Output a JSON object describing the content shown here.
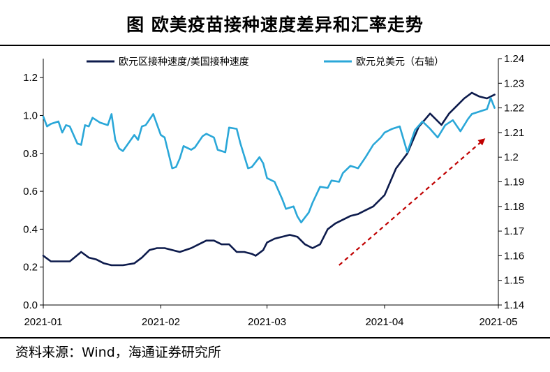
{
  "title": "图 欧美疫苗接种速度差异和汇率走势",
  "source": "资料来源：Wind，海通证券研究所",
  "chart_data": {
    "type": "line",
    "legend": {
      "placement": "top",
      "entries": [
        "欧元区接种速度/美国接种速度",
        "欧元兑美元（右轴）"
      ]
    },
    "x_ticks": [
      "2021-01",
      "2021-02",
      "2021-03",
      "2021-04",
      "2021-05"
    ],
    "x_tick_dates": [
      "2021-01-01",
      "2021-02-01",
      "2021-03-01",
      "2021-04-01",
      "2021-05-01"
    ],
    "y_left": {
      "ticks": [
        "0.0",
        "0.2",
        "0.4",
        "0.6",
        "0.8",
        "1.0",
        "1.2"
      ],
      "range": [
        0,
        1.3
      ]
    },
    "y_right": {
      "ticks": [
        "1.14",
        "1.15",
        "1.16",
        "1.17",
        "1.18",
        "1.19",
        "1.2",
        "1.21",
        "1.22",
        "1.23",
        "1.24"
      ],
      "range": [
        1.14,
        1.24
      ]
    },
    "colors": {
      "ratio": "#0d1b4c",
      "eurusd": "#2aa7d8",
      "arrow": "#c00000"
    },
    "series": [
      {
        "name": "欧元区接种速度/美国接种速度",
        "axis": "left",
        "x": [
          "2021-01-01",
          "2021-01-03",
          "2021-01-05",
          "2021-01-08",
          "2021-01-11",
          "2021-01-13",
          "2021-01-15",
          "2021-01-17",
          "2021-01-19",
          "2021-01-22",
          "2021-01-25",
          "2021-01-27",
          "2021-01-29",
          "2021-01-31",
          "2021-02-02",
          "2021-02-04",
          "2021-02-06",
          "2021-02-09",
          "2021-02-11",
          "2021-02-13",
          "2021-02-15",
          "2021-02-17",
          "2021-02-19",
          "2021-02-21",
          "2021-02-23",
          "2021-02-25",
          "2021-02-26",
          "2021-02-28",
          "2021-03-01",
          "2021-03-03",
          "2021-03-05",
          "2021-03-07",
          "2021-03-09",
          "2021-03-11",
          "2021-03-13",
          "2021-03-15",
          "2021-03-17",
          "2021-03-19",
          "2021-03-21",
          "2021-03-23",
          "2021-03-25",
          "2021-03-27",
          "2021-03-29",
          "2021-04-01",
          "2021-04-04",
          "2021-04-07",
          "2021-04-10",
          "2021-04-13",
          "2021-04-16",
          "2021-04-18",
          "2021-04-20",
          "2021-04-22",
          "2021-04-24",
          "2021-04-26",
          "2021-04-28",
          "2021-04-30"
        ],
        "y": [
          0.26,
          0.23,
          0.23,
          0.23,
          0.28,
          0.25,
          0.24,
          0.22,
          0.21,
          0.21,
          0.22,
          0.25,
          0.29,
          0.3,
          0.3,
          0.29,
          0.28,
          0.3,
          0.32,
          0.34,
          0.34,
          0.32,
          0.32,
          0.28,
          0.28,
          0.27,
          0.26,
          0.29,
          0.33,
          0.35,
          0.36,
          0.37,
          0.36,
          0.32,
          0.3,
          0.32,
          0.4,
          0.43,
          0.45,
          0.47,
          0.48,
          0.5,
          0.52,
          0.58,
          0.72,
          0.8,
          0.94,
          1.01,
          0.95,
          1.01,
          1.05,
          1.09,
          1.12,
          1.1,
          1.09,
          1.11
        ]
      },
      {
        "name": "欧元兑美元（右轴）",
        "axis": "right",
        "x": [
          "2021-01-01",
          "2021-01-02",
          "2021-01-03",
          "2021-01-05",
          "2021-01-06",
          "2021-01-07",
          "2021-01-08",
          "2021-01-10",
          "2021-01-11",
          "2021-01-12",
          "2021-01-13",
          "2021-01-14",
          "2021-01-16",
          "2021-01-18",
          "2021-01-19",
          "2021-01-20",
          "2021-01-21",
          "2021-01-22",
          "2021-01-25",
          "2021-01-26",
          "2021-01-27",
          "2021-01-28",
          "2021-01-30",
          "2021-02-01",
          "2021-02-02",
          "2021-02-04",
          "2021-02-05",
          "2021-02-06",
          "2021-02-07",
          "2021-02-09",
          "2021-02-10",
          "2021-02-12",
          "2021-02-13",
          "2021-02-15",
          "2021-02-16",
          "2021-02-18",
          "2021-02-19",
          "2021-02-21",
          "2021-02-22",
          "2021-02-24",
          "2021-02-25",
          "2021-02-27",
          "2021-02-28",
          "2021-03-01",
          "2021-03-03",
          "2021-03-05",
          "2021-03-06",
          "2021-03-08",
          "2021-03-09",
          "2021-03-10",
          "2021-03-12",
          "2021-03-13",
          "2021-03-15",
          "2021-03-17",
          "2021-03-18",
          "2021-03-20",
          "2021-03-21",
          "2021-03-23",
          "2021-03-25",
          "2021-03-27",
          "2021-03-29",
          "2021-03-31",
          "2021-04-01",
          "2021-04-03",
          "2021-04-05",
          "2021-04-07",
          "2021-04-09",
          "2021-04-11",
          "2021-04-13",
          "2021-04-15",
          "2021-04-17",
          "2021-04-19",
          "2021-04-21",
          "2021-04-23",
          "2021-04-24",
          "2021-04-26",
          "2021-04-28",
          "2021-04-29",
          "2021-04-30"
        ],
        "y": [
          1.2165,
          1.2125,
          1.2135,
          1.2145,
          1.21,
          1.213,
          1.2125,
          1.2055,
          1.205,
          1.213,
          1.2125,
          1.216,
          1.214,
          1.213,
          1.2175,
          1.207,
          1.2035,
          1.2025,
          1.209,
          1.207,
          1.2125,
          1.213,
          1.2175,
          1.209,
          1.208,
          1.1955,
          1.196,
          1.1995,
          1.2045,
          1.203,
          1.204,
          1.2085,
          1.2095,
          1.208,
          1.203,
          1.202,
          1.212,
          1.2115,
          1.2055,
          1.1955,
          1.196,
          1.2,
          1.1975,
          1.1915,
          1.19,
          1.183,
          1.179,
          1.18,
          1.176,
          1.1735,
          1.1775,
          1.1815,
          1.188,
          1.1875,
          1.1905,
          1.19,
          1.1935,
          1.1965,
          1.1955,
          1.2,
          1.205,
          1.208,
          1.21,
          1.2115,
          1.2125,
          1.202,
          1.211,
          1.2145,
          1.2115,
          1.208,
          1.213,
          1.215,
          1.2105,
          1.2155,
          1.2175,
          1.2185,
          1.2195,
          1.224,
          1.22
        ]
      }
    ],
    "annotation": {
      "type": "arrow",
      "from": {
        "x": "2021-03-20",
        "y_left": 0.21
      },
      "to": {
        "x": "2021-04-27",
        "y_left": 0.87
      }
    }
  }
}
